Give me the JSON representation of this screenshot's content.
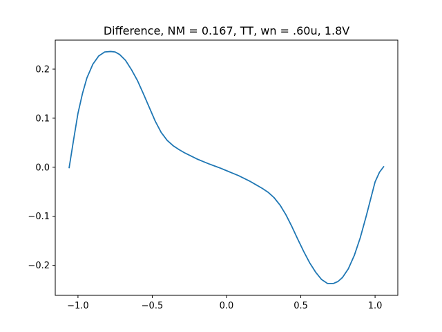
{
  "chart_data": {
    "type": "line",
    "title": "Difference, NM = 0.167, TT, wn = .60u, 1.8V",
    "xlabel": "",
    "ylabel": "",
    "xlim": [
      -1.153,
      1.153
    ],
    "ylim": [
      -0.2612,
      0.2592
    ],
    "xticks": [
      -1.0,
      -0.5,
      0.0,
      0.5,
      1.0
    ],
    "xtick_labels": [
      "−1.0",
      "−0.5",
      "0.0",
      "0.5",
      "1.0"
    ],
    "yticks": [
      -0.2,
      -0.1,
      0.0,
      0.1,
      0.2
    ],
    "ytick_labels": [
      "−0.2",
      "−0.1",
      "0.0",
      "0.1",
      "0.2"
    ],
    "grid": false,
    "legend": "none",
    "series": [
      {
        "color": "#1f77b4",
        "x": [
          -1.06,
          -1.03,
          -1.0,
          -0.97,
          -0.94,
          -0.9,
          -0.86,
          -0.82,
          -0.78,
          -0.75,
          -0.72,
          -0.68,
          -0.64,
          -0.6,
          -0.56,
          -0.52,
          -0.48,
          -0.44,
          -0.4,
          -0.36,
          -0.32,
          -0.28,
          -0.24,
          -0.2,
          -0.16,
          -0.12,
          -0.08,
          -0.04,
          0.0,
          0.04,
          0.08,
          0.12,
          0.16,
          0.2,
          0.24,
          0.28,
          0.32,
          0.36,
          0.4,
          0.44,
          0.48,
          0.52,
          0.56,
          0.6,
          0.64,
          0.68,
          0.72,
          0.75,
          0.78,
          0.82,
          0.86,
          0.9,
          0.94,
          0.97,
          1.0,
          1.03,
          1.06
        ],
        "y": [
          -0.002,
          0.055,
          0.11,
          0.15,
          0.182,
          0.21,
          0.227,
          0.235,
          0.236,
          0.235,
          0.23,
          0.218,
          0.199,
          0.177,
          0.15,
          0.122,
          0.094,
          0.071,
          0.055,
          0.044,
          0.036,
          0.029,
          0.023,
          0.017,
          0.012,
          0.007,
          0.0025,
          -0.002,
          -0.007,
          -0.012,
          -0.017,
          -0.023,
          -0.029,
          -0.036,
          -0.043,
          -0.051,
          -0.062,
          -0.077,
          -0.097,
          -0.121,
          -0.147,
          -0.172,
          -0.195,
          -0.214,
          -0.229,
          -0.237,
          -0.237,
          -0.233,
          -0.225,
          -0.207,
          -0.18,
          -0.144,
          -0.1,
          -0.065,
          -0.03,
          -0.01,
          0.002
        ]
      }
    ]
  }
}
